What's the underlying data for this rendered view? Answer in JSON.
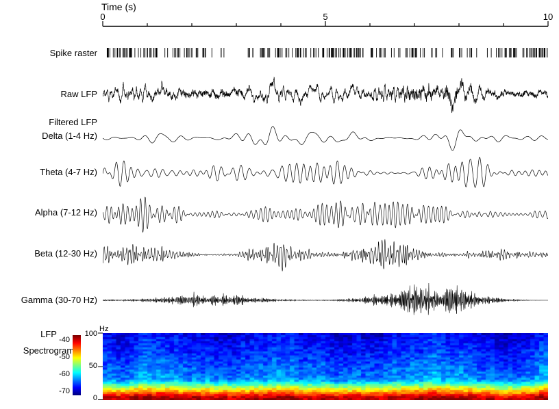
{
  "background_color": "#ffffff",
  "trace_color": "#000000",
  "time_axis": {
    "title": "Time (s)",
    "unit": "s",
    "range": [
      0,
      10
    ],
    "minor_tick_step": 1,
    "major_ticks": [
      0,
      5,
      10
    ],
    "major_tick_labels": [
      "0",
      "5",
      "10"
    ]
  },
  "labels": {
    "filtered_group": "Filtered LFP",
    "spectrogram_line1": "LFP",
    "spectrogram_line2": "Spectrogram"
  },
  "chart_data": [
    {
      "type": "raster",
      "name": "spike_raster",
      "title": "Spike raster",
      "x_range_s": [
        0,
        10
      ],
      "approx_mean_rate_hz": 26,
      "gap_intervals_s": [
        [
          1.22,
          1.38
        ],
        [
          2.52,
          2.62
        ],
        [
          5.9,
          5.98
        ],
        [
          8.08,
          8.15
        ]
      ]
    },
    {
      "type": "line",
      "name": "raw_lfp",
      "title": "Raw LFP",
      "x_range_s": [
        0,
        10
      ],
      "band_hz": [
        1,
        70
      ],
      "description": "broadband noisy local field potential trace"
    },
    {
      "type": "line",
      "name": "delta",
      "group": "Filtered LFP",
      "title": "Delta (1-4 Hz)",
      "x_range_s": [
        0,
        10
      ],
      "band_hz": [
        1,
        4
      ]
    },
    {
      "type": "line",
      "name": "theta",
      "group": "Filtered LFP",
      "title": "Theta (4-7 Hz)",
      "x_range_s": [
        0,
        10
      ],
      "band_hz": [
        4,
        7
      ]
    },
    {
      "type": "line",
      "name": "alpha",
      "group": "Filtered LFP",
      "title": "Alpha (7-12 Hz)",
      "x_range_s": [
        0,
        10
      ],
      "band_hz": [
        7,
        12
      ]
    },
    {
      "type": "line",
      "name": "beta",
      "group": "Filtered LFP",
      "title": "Beta (12-30 Hz)",
      "x_range_s": [
        0,
        10
      ],
      "band_hz": [
        12,
        30
      ]
    },
    {
      "type": "line",
      "name": "gamma",
      "group": "Filtered LFP",
      "title": "Gamma (30-70 Hz)",
      "x_range_s": [
        0,
        10
      ],
      "band_hz": [
        30,
        70
      ]
    },
    {
      "type": "heatmap",
      "name": "lfp_spectrogram",
      "title": "LFP Spectrogram",
      "x_range_s": [
        0,
        10
      ],
      "y_range_hz": [
        0,
        100
      ],
      "y_axis_unit": "Hz",
      "y_tick_labels": [
        "100",
        "50",
        "0"
      ],
      "colormap": "jet",
      "colorbar": {
        "tick_labels": [
          "-40",
          "-50",
          "-60",
          "-70"
        ],
        "value_range_db": [
          -72,
          -37
        ],
        "orientation": "vertical"
      },
      "power_db_vs_freq_approx": [
        {
          "freq_hz": 0,
          "power_db": -38
        },
        {
          "freq_hz": 5,
          "power_db": -39
        },
        {
          "freq_hz": 10,
          "power_db": -44
        },
        {
          "freq_hz": 15,
          "power_db": -48.5
        },
        {
          "freq_hz": 20,
          "power_db": -53
        },
        {
          "freq_hz": 25,
          "power_db": -57.5
        },
        {
          "freq_hz": 30,
          "power_db": -62
        },
        {
          "freq_hz": 50,
          "power_db": -64
        },
        {
          "freq_hz": 100,
          "power_db": -68
        }
      ]
    }
  ]
}
